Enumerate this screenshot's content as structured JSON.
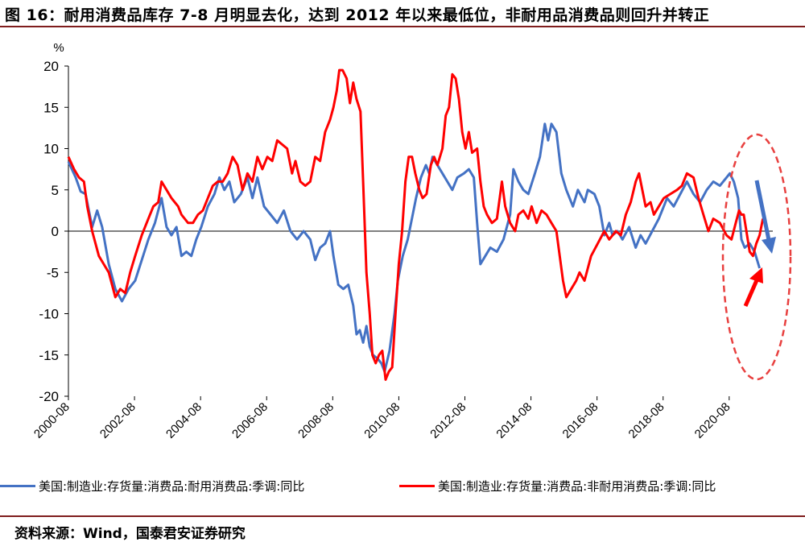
{
  "figure": {
    "title": "图 16：耐用消费品库存 7-8 月明显去化，达到 2012 年以来最低位，非耐用品消费品则回升并转正",
    "source": "资料来源：Wind，国泰君安证券研究"
  },
  "colors": {
    "blue": "#4472C4",
    "red": "#FF0000",
    "annotation_red": "#E8403F"
  },
  "chart_data": {
    "type": "line",
    "ylabel": "%",
    "ylim": [
      -20,
      20
    ],
    "yticks": [
      -20,
      -15,
      -10,
      -5,
      0,
      5,
      10,
      15,
      20
    ],
    "xlim": [
      2000.58,
      2021.9
    ],
    "xticks": [
      "2000-08",
      "2002-08",
      "2004-08",
      "2006-08",
      "2008-08",
      "2010-08",
      "2012-08",
      "2014-08",
      "2016-08",
      "2018-08",
      "2020-08"
    ],
    "grid": false,
    "legend_position": "bottom",
    "series": [
      {
        "name": "美国:制造业:存货量:消费品:耐用消费品:季调:同比",
        "color": "#4472C4",
        "points": [
          [
            2000.58,
            8.4
          ],
          [
            2000.8,
            6.5
          ],
          [
            2000.95,
            4.8
          ],
          [
            2001.1,
            4.5
          ],
          [
            2001.3,
            0.5
          ],
          [
            2001.45,
            2.5
          ],
          [
            2001.6,
            0.5
          ],
          [
            2001.8,
            -4
          ],
          [
            2002.0,
            -7
          ],
          [
            2002.2,
            -8.5
          ],
          [
            2002.4,
            -7
          ],
          [
            2002.6,
            -6
          ],
          [
            2002.8,
            -3.5
          ],
          [
            2003.0,
            -1
          ],
          [
            2003.2,
            1
          ],
          [
            2003.4,
            4
          ],
          [
            2003.55,
            0.5
          ],
          [
            2003.7,
            -0.5
          ],
          [
            2003.85,
            0.5
          ],
          [
            2004.0,
            -3
          ],
          [
            2004.15,
            -2.5
          ],
          [
            2004.3,
            -3
          ],
          [
            2004.45,
            -1
          ],
          [
            2004.6,
            0.5
          ],
          [
            2004.8,
            3
          ],
          [
            2005.0,
            4.5
          ],
          [
            2005.15,
            6.5
          ],
          [
            2005.3,
            5
          ],
          [
            2005.45,
            6
          ],
          [
            2005.6,
            3.5
          ],
          [
            2005.8,
            4.5
          ],
          [
            2006.0,
            6.5
          ],
          [
            2006.15,
            4
          ],
          [
            2006.3,
            6.5
          ],
          [
            2006.5,
            3
          ],
          [
            2006.7,
            2
          ],
          [
            2006.9,
            1
          ],
          [
            2007.1,
            2.5
          ],
          [
            2007.3,
            0
          ],
          [
            2007.5,
            -1
          ],
          [
            2007.7,
            0
          ],
          [
            2007.9,
            -1
          ],
          [
            2008.05,
            -3.5
          ],
          [
            2008.2,
            -2
          ],
          [
            2008.35,
            -1.5
          ],
          [
            2008.5,
            0
          ],
          [
            2008.6,
            -3
          ],
          [
            2008.75,
            -6.5
          ],
          [
            2008.9,
            -7
          ],
          [
            2009.05,
            -6.5
          ],
          [
            2009.2,
            -9
          ],
          [
            2009.3,
            -12.5
          ],
          [
            2009.4,
            -12
          ],
          [
            2009.5,
            -13.5
          ],
          [
            2009.6,
            -11.5
          ],
          [
            2009.7,
            -14
          ],
          [
            2009.8,
            -15
          ],
          [
            2009.95,
            -15.5
          ],
          [
            2010.05,
            -16
          ],
          [
            2010.15,
            -17
          ],
          [
            2010.3,
            -14.5
          ],
          [
            2010.45,
            -10
          ],
          [
            2010.55,
            -6
          ],
          [
            2010.7,
            -3
          ],
          [
            2010.85,
            -1
          ],
          [
            2011.0,
            2
          ],
          [
            2011.1,
            4
          ],
          [
            2011.25,
            6.5
          ],
          [
            2011.4,
            8
          ],
          [
            2011.5,
            7
          ],
          [
            2011.6,
            9
          ],
          [
            2011.75,
            8
          ],
          [
            2011.9,
            7
          ],
          [
            2012.05,
            6
          ],
          [
            2012.2,
            5
          ],
          [
            2012.35,
            6.5
          ],
          [
            2012.55,
            7
          ],
          [
            2012.7,
            7.5
          ],
          [
            2012.85,
            6.5
          ],
          [
            2012.95,
            1
          ],
          [
            2013.05,
            -4
          ],
          [
            2013.2,
            -3
          ],
          [
            2013.35,
            -2
          ],
          [
            2013.55,
            -2.5
          ],
          [
            2013.75,
            -1
          ],
          [
            2013.95,
            2
          ],
          [
            2014.05,
            7.5
          ],
          [
            2014.2,
            6
          ],
          [
            2014.35,
            5
          ],
          [
            2014.5,
            4.5
          ],
          [
            2014.7,
            7
          ],
          [
            2014.85,
            9
          ],
          [
            2015.0,
            13
          ],
          [
            2015.1,
            11
          ],
          [
            2015.2,
            13
          ],
          [
            2015.35,
            12
          ],
          [
            2015.5,
            7
          ],
          [
            2015.65,
            5
          ],
          [
            2015.85,
            3
          ],
          [
            2016.0,
            5
          ],
          [
            2016.2,
            3.5
          ],
          [
            2016.3,
            5
          ],
          [
            2016.5,
            4.5
          ],
          [
            2016.65,
            3
          ],
          [
            2016.8,
            -0.5
          ],
          [
            2016.95,
            1
          ],
          [
            2017.05,
            -0.5
          ],
          [
            2017.2,
            0
          ],
          [
            2017.35,
            -1
          ],
          [
            2017.55,
            0.5
          ],
          [
            2017.75,
            -2
          ],
          [
            2017.9,
            -0.5
          ],
          [
            2018.05,
            -1.5
          ],
          [
            2018.25,
            0
          ],
          [
            2018.45,
            1.5
          ],
          [
            2018.7,
            4
          ],
          [
            2018.9,
            3
          ],
          [
            2019.1,
            4.5
          ],
          [
            2019.3,
            6
          ],
          [
            2019.5,
            4.5
          ],
          [
            2019.7,
            3.5
          ],
          [
            2019.9,
            5
          ],
          [
            2020.1,
            6
          ],
          [
            2020.3,
            5.5
          ],
          [
            2020.5,
            6.5
          ],
          [
            2020.6,
            7
          ],
          [
            2020.72,
            6
          ],
          [
            2020.85,
            4
          ],
          [
            2020.95,
            -1
          ],
          [
            2021.05,
            -2
          ],
          [
            2021.2,
            -1.5
          ],
          [
            2021.35,
            -2.5
          ],
          [
            2021.5,
            -4.5
          ]
        ]
      },
      {
        "name": "美国:制造业:存货量:消费品:非耐用消费品:季调:同比",
        "color": "#FF0000",
        "points": [
          [
            2000.58,
            9
          ],
          [
            2000.75,
            7.5
          ],
          [
            2000.9,
            6.5
          ],
          [
            2001.05,
            6
          ],
          [
            2001.15,
            3
          ],
          [
            2001.3,
            0
          ],
          [
            2001.5,
            -3
          ],
          [
            2001.65,
            -4
          ],
          [
            2001.8,
            -5
          ],
          [
            2002.0,
            -8
          ],
          [
            2002.15,
            -7
          ],
          [
            2002.3,
            -7.5
          ],
          [
            2002.45,
            -5
          ],
          [
            2002.6,
            -3
          ],
          [
            2002.8,
            -0.5
          ],
          [
            2003.0,
            1.5
          ],
          [
            2003.15,
            3
          ],
          [
            2003.3,
            3.5
          ],
          [
            2003.4,
            6
          ],
          [
            2003.55,
            5
          ],
          [
            2003.7,
            4
          ],
          [
            2003.9,
            3
          ],
          [
            2004.0,
            2
          ],
          [
            2004.2,
            1
          ],
          [
            2004.35,
            1
          ],
          [
            2004.5,
            2
          ],
          [
            2004.65,
            2.5
          ],
          [
            2004.8,
            4
          ],
          [
            2004.95,
            5.5
          ],
          [
            2005.1,
            6
          ],
          [
            2005.25,
            6
          ],
          [
            2005.4,
            7
          ],
          [
            2005.55,
            9
          ],
          [
            2005.7,
            8
          ],
          [
            2005.85,
            5
          ],
          [
            2006.0,
            7
          ],
          [
            2006.15,
            6
          ],
          [
            2006.3,
            9
          ],
          [
            2006.45,
            7.5
          ],
          [
            2006.6,
            9
          ],
          [
            2006.75,
            8.5
          ],
          [
            2006.9,
            11
          ],
          [
            2007.05,
            10.5
          ],
          [
            2007.2,
            10
          ],
          [
            2007.35,
            7
          ],
          [
            2007.45,
            8.5
          ],
          [
            2007.6,
            6
          ],
          [
            2007.75,
            5.5
          ],
          [
            2007.9,
            6
          ],
          [
            2008.05,
            9
          ],
          [
            2008.2,
            8.5
          ],
          [
            2008.35,
            12
          ],
          [
            2008.5,
            13.5
          ],
          [
            2008.6,
            15
          ],
          [
            2008.7,
            17
          ],
          [
            2008.78,
            19.5
          ],
          [
            2008.88,
            19.5
          ],
          [
            2009.0,
            18.5
          ],
          [
            2009.1,
            15.5
          ],
          [
            2009.2,
            18
          ],
          [
            2009.3,
            16
          ],
          [
            2009.42,
            14.5
          ],
          [
            2009.5,
            6
          ],
          [
            2009.6,
            -5
          ],
          [
            2009.7,
            -10
          ],
          [
            2009.78,
            -15
          ],
          [
            2009.88,
            -16
          ],
          [
            2009.98,
            -15
          ],
          [
            2010.08,
            -14.5
          ],
          [
            2010.18,
            -18
          ],
          [
            2010.28,
            -17
          ],
          [
            2010.38,
            -16.5
          ],
          [
            2010.48,
            -10
          ],
          [
            2010.58,
            -4
          ],
          [
            2010.68,
            0
          ],
          [
            2010.78,
            6
          ],
          [
            2010.88,
            9
          ],
          [
            2010.98,
            9
          ],
          [
            2011.08,
            7
          ],
          [
            2011.2,
            5
          ],
          [
            2011.3,
            4
          ],
          [
            2011.42,
            4.5
          ],
          [
            2011.55,
            8
          ],
          [
            2011.65,
            9
          ],
          [
            2011.75,
            8
          ],
          [
            2011.9,
            10
          ],
          [
            2012.0,
            14
          ],
          [
            2012.1,
            15
          ],
          [
            2012.2,
            19
          ],
          [
            2012.3,
            18.5
          ],
          [
            2012.4,
            16
          ],
          [
            2012.5,
            12
          ],
          [
            2012.6,
            10
          ],
          [
            2012.7,
            12
          ],
          [
            2012.8,
            9.5
          ],
          [
            2012.95,
            10
          ],
          [
            2013.05,
            6
          ],
          [
            2013.15,
            3
          ],
          [
            2013.25,
            2
          ],
          [
            2013.4,
            1
          ],
          [
            2013.55,
            1.5
          ],
          [
            2013.7,
            6
          ],
          [
            2013.8,
            3
          ],
          [
            2013.95,
            1
          ],
          [
            2014.1,
            0
          ],
          [
            2014.2,
            2
          ],
          [
            2014.35,
            2.5
          ],
          [
            2014.5,
            1.5
          ],
          [
            2014.6,
            3
          ],
          [
            2014.75,
            1
          ],
          [
            2014.9,
            2.5
          ],
          [
            2015.05,
            2
          ],
          [
            2015.2,
            1
          ],
          [
            2015.35,
            0
          ],
          [
            2015.45,
            -3
          ],
          [
            2015.55,
            -6
          ],
          [
            2015.65,
            -8
          ],
          [
            2015.8,
            -7
          ],
          [
            2015.95,
            -6
          ],
          [
            2016.05,
            -5
          ],
          [
            2016.2,
            -6
          ],
          [
            2016.4,
            -3
          ],
          [
            2016.6,
            -1.5
          ],
          [
            2016.8,
            0
          ],
          [
            2016.95,
            -1
          ],
          [
            2017.15,
            0
          ],
          [
            2017.3,
            -0.5
          ],
          [
            2017.45,
            2
          ],
          [
            2017.6,
            3.5
          ],
          [
            2017.75,
            6
          ],
          [
            2017.85,
            7
          ],
          [
            2017.95,
            5
          ],
          [
            2018.05,
            3
          ],
          [
            2018.2,
            3.5
          ],
          [
            2018.3,
            2
          ],
          [
            2018.45,
            3
          ],
          [
            2018.6,
            4
          ],
          [
            2018.8,
            4.5
          ],
          [
            2019.0,
            5
          ],
          [
            2019.15,
            5.5
          ],
          [
            2019.3,
            7
          ],
          [
            2019.5,
            6.5
          ],
          [
            2019.65,
            4
          ],
          [
            2019.8,
            2
          ],
          [
            2019.95,
            0
          ],
          [
            2020.1,
            1.5
          ],
          [
            2020.3,
            1
          ],
          [
            2020.5,
            -0.5
          ],
          [
            2020.65,
            -1
          ],
          [
            2020.78,
            1
          ],
          [
            2020.88,
            2.5
          ],
          [
            2020.95,
            2
          ],
          [
            2021.02,
            2
          ],
          [
            2021.1,
            0
          ],
          [
            2021.2,
            -2.5
          ],
          [
            2021.3,
            -3
          ],
          [
            2021.4,
            -1.5
          ],
          [
            2021.5,
            -0.5
          ],
          [
            2021.6,
            1.5
          ]
        ]
      }
    ]
  }
}
